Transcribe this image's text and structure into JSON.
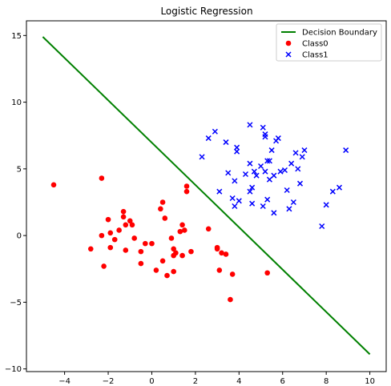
{
  "chart_data": {
    "type": "scatter",
    "title": "Logistic Regression",
    "xlabel": "",
    "ylabel": "",
    "xlim": [
      -5.75,
      10.75
    ],
    "ylim": [
      -10.2,
      16.1
    ],
    "xticks": [
      -4,
      -2,
      0,
      2,
      4,
      6,
      8,
      10
    ],
    "yticks": [
      -10,
      -5,
      0,
      5,
      10,
      15
    ],
    "legend": {
      "position": "top-right",
      "entries": [
        "Decision Boundary",
        "Class0",
        "Class1"
      ]
    },
    "line": {
      "name": "Decision Boundary",
      "color": "#008000",
      "x": [
        -5,
        10
      ],
      "y": [
        14.9,
        -8.9
      ]
    },
    "series": [
      {
        "name": "Class0",
        "marker": "circle",
        "color": "#ff0000",
        "points": [
          [
            -4.5,
            3.8
          ],
          [
            -2.3,
            4.3
          ],
          [
            -2.8,
            -1.0
          ],
          [
            -2.3,
            0.0
          ],
          [
            -2.2,
            -2.3
          ],
          [
            -2.0,
            1.2
          ],
          [
            -1.9,
            0.2
          ],
          [
            -1.9,
            -0.9
          ],
          [
            -1.7,
            -0.3
          ],
          [
            -1.5,
            0.4
          ],
          [
            -1.3,
            1.8
          ],
          [
            -1.3,
            1.4
          ],
          [
            -1.2,
            -1.1
          ],
          [
            -1.2,
            0.8
          ],
          [
            -1.0,
            1.1
          ],
          [
            -0.9,
            0.8
          ],
          [
            -0.8,
            -0.2
          ],
          [
            -0.5,
            -1.2
          ],
          [
            -0.5,
            -2.1
          ],
          [
            -0.3,
            -0.6
          ],
          [
            0.2,
            -2.6
          ],
          [
            0.4,
            2.0
          ],
          [
            0.5,
            2.5
          ],
          [
            0.6,
            1.3
          ],
          [
            0.5,
            -1.9
          ],
          [
            0.7,
            -3.0
          ],
          [
            0.9,
            -0.2
          ],
          [
            1.0,
            -1.0
          ],
          [
            1.0,
            -1.5
          ],
          [
            1.0,
            -2.7
          ],
          [
            1.1,
            -1.3
          ],
          [
            1.3,
            0.3
          ],
          [
            1.4,
            0.8
          ],
          [
            1.4,
            -1.5
          ],
          [
            1.5,
            0.4
          ],
          [
            1.6,
            3.7
          ],
          [
            1.6,
            3.3
          ],
          [
            1.8,
            -1.2
          ],
          [
            2.6,
            0.5
          ],
          [
            3.0,
            -0.9
          ],
          [
            3.0,
            -1.0
          ],
          [
            3.1,
            -2.6
          ],
          [
            3.2,
            -1.3
          ],
          [
            3.4,
            -1.4
          ],
          [
            3.6,
            -4.8
          ],
          [
            3.7,
            -2.9
          ],
          [
            5.3,
            -2.8
          ],
          [
            0.0,
            -0.6
          ]
        ]
      },
      {
        "name": "Class1",
        "marker": "x",
        "color": "#0000ff",
        "points": [
          [
            2.3,
            5.9
          ],
          [
            2.6,
            7.3
          ],
          [
            2.9,
            7.8
          ],
          [
            3.1,
            3.3
          ],
          [
            3.4,
            7.0
          ],
          [
            3.5,
            4.7
          ],
          [
            3.7,
            2.8
          ],
          [
            3.8,
            2.2
          ],
          [
            3.9,
            6.6
          ],
          [
            3.9,
            6.3
          ],
          [
            4.0,
            2.6
          ],
          [
            3.8,
            4.1
          ],
          [
            4.3,
            4.6
          ],
          [
            4.5,
            8.3
          ],
          [
            4.5,
            5.4
          ],
          [
            4.5,
            3.3
          ],
          [
            4.6,
            3.6
          ],
          [
            4.6,
            2.4
          ],
          [
            4.7,
            4.8
          ],
          [
            4.8,
            4.5
          ],
          [
            5.0,
            5.2
          ],
          [
            5.1,
            8.1
          ],
          [
            5.1,
            2.2
          ],
          [
            5.2,
            7.6
          ],
          [
            5.2,
            7.4
          ],
          [
            5.2,
            4.8
          ],
          [
            5.3,
            5.6
          ],
          [
            5.3,
            2.7
          ],
          [
            5.4,
            5.6
          ],
          [
            5.4,
            4.2
          ],
          [
            5.5,
            6.4
          ],
          [
            5.6,
            4.5
          ],
          [
            5.6,
            1.7
          ],
          [
            5.7,
            7.1
          ],
          [
            5.8,
            7.3
          ],
          [
            5.9,
            4.8
          ],
          [
            6.1,
            4.9
          ],
          [
            6.2,
            3.4
          ],
          [
            6.3,
            2.0
          ],
          [
            6.4,
            5.4
          ],
          [
            6.5,
            2.5
          ],
          [
            6.6,
            6.2
          ],
          [
            6.7,
            5.0
          ],
          [
            6.8,
            3.9
          ],
          [
            6.9,
            5.9
          ],
          [
            7.0,
            6.4
          ],
          [
            7.8,
            0.7
          ],
          [
            8.0,
            2.3
          ],
          [
            8.3,
            3.3
          ],
          [
            8.6,
            3.6
          ],
          [
            8.9,
            6.4
          ]
        ]
      }
    ]
  }
}
